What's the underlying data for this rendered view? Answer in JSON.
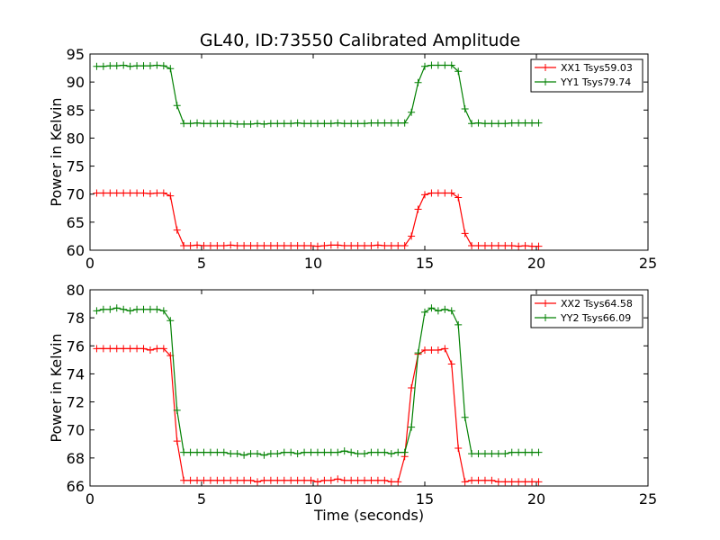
{
  "figure": {
    "title": "GL40, ID:73550 Calibrated Amplitude"
  },
  "chart_data": [
    {
      "type": "line",
      "ylabel": "Power in Kelvin",
      "xlabel": "",
      "xlim": [
        0,
        25
      ],
      "ylim": [
        60,
        95
      ],
      "xticks": [
        0,
        5,
        10,
        15,
        20,
        25
      ],
      "yticks": [
        60,
        65,
        70,
        75,
        80,
        85,
        90,
        95
      ],
      "legend_position": "top-right",
      "grid": false,
      "x": [
        0.3,
        0.6,
        0.9,
        1.2,
        1.5,
        1.8,
        2.1,
        2.4,
        2.7,
        3.0,
        3.3,
        3.6,
        3.9,
        4.2,
        4.5,
        4.8,
        5.1,
        5.4,
        5.7,
        6.0,
        6.3,
        6.6,
        6.9,
        7.2,
        7.5,
        7.8,
        8.1,
        8.4,
        8.7,
        9.0,
        9.3,
        9.6,
        9.9,
        10.2,
        10.5,
        10.8,
        11.1,
        11.4,
        11.7,
        12.0,
        12.3,
        12.6,
        12.9,
        13.2,
        13.5,
        13.8,
        14.1,
        14.4,
        14.7,
        15.0,
        15.3,
        15.6,
        15.9,
        16.2,
        16.5,
        16.8,
        17.1,
        17.4,
        17.7,
        18.0,
        18.3,
        18.6,
        18.9,
        19.2,
        19.5,
        19.8,
        20.1
      ],
      "series": [
        {
          "name": "XX1 Tsys59.03",
          "color": "#ff0000",
          "values": [
            70.2,
            70.2,
            70.2,
            70.2,
            70.2,
            70.2,
            70.2,
            70.2,
            70.1,
            70.2,
            70.2,
            69.7,
            63.6,
            60.8,
            60.8,
            60.9,
            60.8,
            60.8,
            60.8,
            60.8,
            60.9,
            60.8,
            60.8,
            60.8,
            60.8,
            60.8,
            60.8,
            60.8,
            60.8,
            60.8,
            60.8,
            60.8,
            60.8,
            60.7,
            60.8,
            60.9,
            60.9,
            60.8,
            60.8,
            60.8,
            60.8,
            60.8,
            60.9,
            60.8,
            60.8,
            60.8,
            60.8,
            62.5,
            67.3,
            69.9,
            70.2,
            70.2,
            70.2,
            70.2,
            69.4,
            63.0,
            60.8,
            60.8,
            60.8,
            60.8,
            60.8,
            60.8,
            60.8,
            60.7,
            60.8,
            60.7,
            60.7
          ]
        },
        {
          "name": "YY1 Tsys79.74",
          "color": "#008000",
          "values": [
            92.8,
            92.8,
            92.9,
            92.9,
            93.0,
            92.8,
            92.9,
            92.9,
            92.9,
            93.0,
            92.9,
            92.4,
            85.8,
            82.6,
            82.6,
            82.7,
            82.6,
            82.6,
            82.6,
            82.6,
            82.6,
            82.5,
            82.5,
            82.5,
            82.6,
            82.5,
            82.6,
            82.6,
            82.6,
            82.6,
            82.7,
            82.6,
            82.6,
            82.6,
            82.6,
            82.6,
            82.7,
            82.6,
            82.6,
            82.6,
            82.6,
            82.7,
            82.7,
            82.7,
            82.7,
            82.7,
            82.7,
            84.6,
            89.9,
            92.8,
            93.0,
            93.0,
            93.0,
            93.0,
            91.9,
            85.2,
            82.6,
            82.7,
            82.6,
            82.6,
            82.6,
            82.6,
            82.7,
            82.7,
            82.7,
            82.7,
            82.7
          ]
        }
      ]
    },
    {
      "type": "line",
      "ylabel": "Power in Kelvin",
      "xlabel": "Time (seconds)",
      "xlim": [
        0,
        25
      ],
      "ylim": [
        66,
        80
      ],
      "xticks": [
        0,
        5,
        10,
        15,
        20,
        25
      ],
      "yticks": [
        66,
        68,
        70,
        72,
        74,
        76,
        78,
        80
      ],
      "legend_position": "top-right",
      "grid": false,
      "x": [
        0.3,
        0.6,
        0.9,
        1.2,
        1.5,
        1.8,
        2.1,
        2.4,
        2.7,
        3.0,
        3.3,
        3.6,
        3.9,
        4.2,
        4.5,
        4.8,
        5.1,
        5.4,
        5.7,
        6.0,
        6.3,
        6.6,
        6.9,
        7.2,
        7.5,
        7.8,
        8.1,
        8.4,
        8.7,
        9.0,
        9.3,
        9.6,
        9.9,
        10.2,
        10.5,
        10.8,
        11.1,
        11.4,
        11.7,
        12.0,
        12.3,
        12.6,
        12.9,
        13.2,
        13.5,
        13.8,
        14.1,
        14.4,
        14.7,
        15.0,
        15.3,
        15.6,
        15.9,
        16.2,
        16.5,
        16.8,
        17.1,
        17.4,
        17.7,
        18.0,
        18.3,
        18.6,
        18.9,
        19.2,
        19.5,
        19.8,
        20.1
      ],
      "series": [
        {
          "name": "XX2 Tsys64.58",
          "color": "#ff0000",
          "values": [
            75.8,
            75.8,
            75.8,
            75.8,
            75.8,
            75.8,
            75.8,
            75.8,
            75.7,
            75.8,
            75.8,
            75.3,
            69.2,
            66.4,
            66.4,
            66.4,
            66.4,
            66.4,
            66.4,
            66.4,
            66.4,
            66.4,
            66.4,
            66.4,
            66.3,
            66.4,
            66.4,
            66.4,
            66.4,
            66.4,
            66.4,
            66.4,
            66.4,
            66.3,
            66.4,
            66.4,
            66.5,
            66.4,
            66.4,
            66.4,
            66.4,
            66.4,
            66.4,
            66.4,
            66.3,
            66.3,
            68.1,
            73.0,
            75.4,
            75.7,
            75.7,
            75.7,
            75.8,
            74.7,
            68.7,
            66.3,
            66.4,
            66.4,
            66.4,
            66.4,
            66.3,
            66.3,
            66.3,
            66.3,
            66.3,
            66.3,
            66.3
          ]
        },
        {
          "name": "YY2 Tsys66.09",
          "color": "#008000",
          "values": [
            78.5,
            78.6,
            78.6,
            78.7,
            78.6,
            78.5,
            78.6,
            78.6,
            78.6,
            78.6,
            78.5,
            77.8,
            71.4,
            68.4,
            68.4,
            68.4,
            68.4,
            68.4,
            68.4,
            68.4,
            68.3,
            68.3,
            68.2,
            68.3,
            68.3,
            68.2,
            68.3,
            68.3,
            68.4,
            68.4,
            68.3,
            68.4,
            68.4,
            68.4,
            68.4,
            68.4,
            68.4,
            68.5,
            68.4,
            68.3,
            68.3,
            68.4,
            68.4,
            68.4,
            68.3,
            68.4,
            68.4,
            70.2,
            75.5,
            78.4,
            78.7,
            78.5,
            78.6,
            78.5,
            77.5,
            70.9,
            68.3,
            68.3,
            68.3,
            68.3,
            68.3,
            68.3,
            68.4,
            68.4,
            68.4,
            68.4,
            68.4
          ]
        }
      ]
    }
  ]
}
